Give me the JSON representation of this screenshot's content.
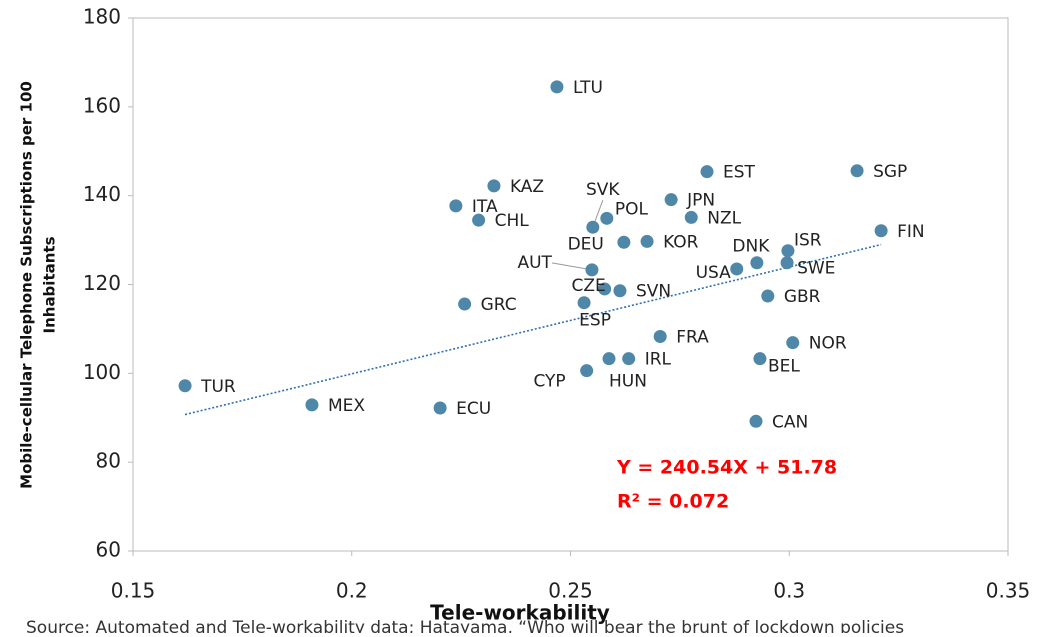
{
  "chart_data": {
    "type": "scatter",
    "xlabel": "Tele-workability",
    "ylabel": [
      "Mobile-cellular Telephone Subscriptions per 100",
      "Inhabitants"
    ],
    "xlim": [
      0.15,
      0.35
    ],
    "ylim": [
      60,
      180
    ],
    "xticks": [
      0.15,
      0.2,
      0.25,
      0.3,
      0.35
    ],
    "yticks": [
      60,
      80,
      100,
      120,
      140,
      160,
      180
    ],
    "color": "#4f87a8",
    "point_labels": [
      "TUR",
      "MEX",
      "ECU",
      "ITA",
      "KAZ",
      "CHL",
      "GRC",
      "LTU",
      "SVK",
      "POL",
      "DEU",
      "KOR",
      "AUT",
      "CZE",
      "SVN",
      "ESP",
      "CYP",
      "HUN",
      "IRL",
      "FRA",
      "JPN",
      "EST",
      "NZL",
      "DNK",
      "USA",
      "ISR",
      "SWE",
      "GBR",
      "BEL",
      "NOR",
      "CAN",
      "SGP",
      "FIN"
    ],
    "x": [
      0.1619,
      0.1909,
      0.2202,
      0.2238,
      0.2325,
      0.229,
      0.2258,
      0.2469,
      0.2551,
      0.2583,
      0.2622,
      0.2675,
      0.2549,
      0.2578,
      0.2613,
      0.2531,
      0.2537,
      0.2588,
      0.2633,
      0.2705,
      0.273,
      0.2812,
      0.2776,
      0.2926,
      0.288,
      0.2997,
      0.2995,
      0.2951,
      0.2933,
      0.3008,
      0.2924,
      0.3155,
      0.321
    ],
    "values": [
      97.2,
      92.9,
      92.2,
      137.7,
      142.2,
      134.5,
      115.6,
      164.5,
      132.9,
      134.9,
      129.5,
      129.7,
      123.3,
      119.0,
      118.6,
      115.9,
      100.6,
      103.3,
      103.3,
      108.3,
      139.1,
      145.4,
      135.1,
      124.9,
      123.5,
      127.6,
      124.9,
      117.4,
      103.3,
      106.9,
      89.2,
      145.6,
      132.1
    ],
    "trendline": {
      "slope": 240.54,
      "intercept": 51.78,
      "color": "#2e6fb5",
      "equation": "Y = 240.54X + 51.78",
      "r2": "R² = 0.072"
    },
    "note": "Source: Automated and Tele-workability data; Hatayama, “Who will bear the brunt of lockdown policies"
  }
}
